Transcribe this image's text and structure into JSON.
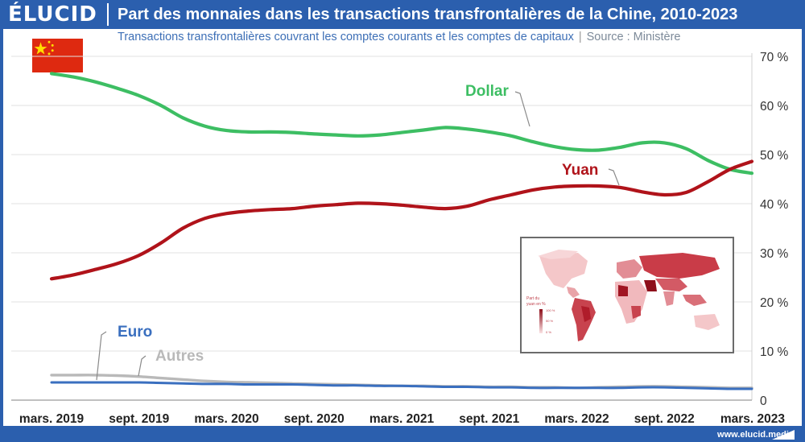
{
  "header": {
    "logo": "ÉLUCID",
    "title": "Part des monnaies dans les transactions transfrontalières de la Chine, 2010-2023"
  },
  "subtitle": {
    "text": "Transactions transfrontalières couvrant les comptes courants et les comptes de capitaux",
    "source": "Source : Ministère"
  },
  "footer": {
    "url": "www.elucid.media"
  },
  "inset": {
    "legend_title": "Part du yuan en %",
    "legend_ticks": [
      "100 %",
      "50 %",
      "0 %"
    ]
  },
  "colors": {
    "frame": "#2b5fae",
    "dollar": "#3dbe63",
    "yuan": "#b0131a",
    "euro": "#3a6fbf",
    "autres": "#b9b9b9",
    "flag": "#de2910",
    "flag_star": "#ffde00"
  },
  "chart_data": {
    "type": "line",
    "title": "Part des monnaies dans les transactions transfrontalières de la Chine, 2010-2023",
    "categories": [
      "mars. 2019",
      "sept. 2019",
      "mars. 2020",
      "sept. 2020",
      "mars. 2021",
      "sept. 2021",
      "mars. 2022",
      "sept. 2022",
      "mars. 2023"
    ],
    "ylabel": "",
    "ylim": [
      0,
      70
    ],
    "yticks": [
      "0",
      "10 %",
      "20 %",
      "30 %",
      "40 %",
      "50 %",
      "60 %",
      "70 %"
    ],
    "grid": true,
    "x": [
      0,
      0.25,
      0.5,
      0.75,
      1,
      1.25,
      1.5,
      1.75,
      2,
      2.25,
      2.5,
      2.75,
      3,
      3.25,
      3.5,
      3.75,
      4,
      4.25,
      4.5,
      4.75,
      5,
      5.25,
      5.5,
      5.75,
      6,
      6.25,
      6.5,
      6.75,
      7,
      7.25,
      7.5,
      7.75,
      8
    ],
    "series": [
      {
        "name": "Dollar",
        "values": [
          66.5,
          65.8,
          64.8,
          63.5,
          62.0,
          60.0,
          57.5,
          55.8,
          54.9,
          54.6,
          54.6,
          54.5,
          54.2,
          54.0,
          53.8,
          54.0,
          54.5,
          55.0,
          55.5,
          55.2,
          54.6,
          53.8,
          52.6,
          51.6,
          51.0,
          50.9,
          51.5,
          52.4,
          52.4,
          51.2,
          48.8,
          47.0,
          46.2
        ]
      },
      {
        "name": "Yuan",
        "values": [
          24.7,
          25.5,
          26.6,
          27.8,
          29.5,
          32.0,
          35.0,
          37.0,
          38.0,
          38.5,
          38.8,
          39.0,
          39.5,
          39.8,
          40.1,
          40.0,
          39.7,
          39.3,
          39.0,
          39.5,
          40.8,
          41.8,
          42.8,
          43.4,
          43.6,
          43.6,
          43.3,
          42.4,
          41.8,
          42.3,
          44.5,
          47.0,
          48.6
        ]
      },
      {
        "name": "Euro",
        "values": [
          3.6,
          3.6,
          3.6,
          3.6,
          3.6,
          3.5,
          3.4,
          3.3,
          3.3,
          3.2,
          3.2,
          3.2,
          3.1,
          3.0,
          3.0,
          2.9,
          2.9,
          2.8,
          2.7,
          2.7,
          2.6,
          2.6,
          2.5,
          2.5,
          2.5,
          2.5,
          2.5,
          2.6,
          2.6,
          2.5,
          2.4,
          2.3,
          2.3
        ]
      },
      {
        "name": "Autres",
        "values": [
          5.1,
          5.1,
          5.1,
          5.0,
          4.8,
          4.5,
          4.2,
          3.9,
          3.7,
          3.6,
          3.5,
          3.4,
          3.3,
          3.2,
          3.1,
          3.0,
          2.9,
          2.9,
          2.8,
          2.8,
          2.7,
          2.7,
          2.6,
          2.6,
          2.5,
          2.6,
          2.7,
          2.8,
          2.8,
          2.7,
          2.6,
          2.5,
          2.5
        ]
      }
    ],
    "annotations": [
      "Dollar",
      "Yuan",
      "Euro",
      "Autres"
    ]
  }
}
